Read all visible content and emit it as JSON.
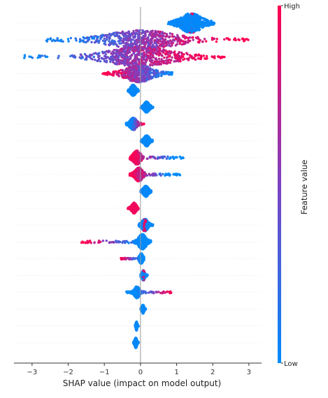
{
  "chart_data": {
    "type": "scatter",
    "subtype": "shap-beeswarm-summary",
    "title": "",
    "xlabel": "SHAP value (impact on model output)",
    "xlim": [
      -3.5,
      3.35
    ],
    "xticks": [
      -3,
      -2,
      -1,
      0,
      1,
      2,
      3
    ],
    "xtick_labels": [
      "−3",
      "−2",
      "−1",
      "0",
      "1",
      "2",
      "3"
    ],
    "grid": false,
    "zero_line": true,
    "colorbar": {
      "title": "Feature value",
      "high_label": "High",
      "low_label": "Low",
      "high_color": "#ff0051",
      "low_color": "#008bfb",
      "placement": "right"
    },
    "feature_rows": [
      {
        "row": 1,
        "min": 0.75,
        "max": 2.05,
        "center": 1.4,
        "spread": 0.28,
        "density": 1.0,
        "color": "low-with-high-core",
        "high_side": "center"
      },
      {
        "row": 2,
        "min": -2.65,
        "max": 3.0,
        "center": 0.0,
        "spread": 0.9,
        "density": 1.0,
        "color": "mixed",
        "high_side": "right"
      },
      {
        "row": 3,
        "min": -3.25,
        "max": 2.35,
        "center": 0.0,
        "spread": 0.9,
        "density": 1.0,
        "color": "mixed",
        "high_side": "right"
      },
      {
        "row": 4,
        "min": -1.05,
        "max": 0.9,
        "center": -0.05,
        "spread": 0.35,
        "density": 0.85,
        "color": "mixed",
        "high_side": "left"
      },
      {
        "row": 5,
        "min": -0.35,
        "max": -0.05,
        "center": -0.2,
        "spread": 0.07,
        "density": 0.4,
        "color": "low",
        "high_side": "none"
      },
      {
        "row": 6,
        "min": 0.0,
        "max": 0.35,
        "center": 0.17,
        "spread": 0.07,
        "density": 0.4,
        "color": "low",
        "high_side": "none"
      },
      {
        "row": 7,
        "min": -0.4,
        "max": 0.1,
        "center": -0.2,
        "spread": 0.09,
        "density": 0.5,
        "color": "low-high-right",
        "high_side": "right"
      },
      {
        "row": 8,
        "min": 0.0,
        "max": 0.35,
        "center": 0.17,
        "spread": 0.07,
        "density": 0.4,
        "color": "low",
        "high_side": "none"
      },
      {
        "row": 9,
        "min": -0.3,
        "max": 1.2,
        "center": -0.1,
        "spread": 0.1,
        "density": 0.6,
        "color": "high-left-low-right",
        "high_side": "left"
      },
      {
        "row": 10,
        "min": -0.3,
        "max": 1.1,
        "center": -0.05,
        "spread": 0.1,
        "density": 0.6,
        "color": "high-left-low-right",
        "high_side": "left"
      },
      {
        "row": 11,
        "min": 0.0,
        "max": 0.3,
        "center": 0.15,
        "spread": 0.07,
        "density": 0.4,
        "color": "low",
        "high_side": "none"
      },
      {
        "row": 12,
        "min": -0.35,
        "max": -0.05,
        "center": -0.18,
        "spread": 0.06,
        "density": 0.4,
        "color": "high",
        "high_side": "center"
      },
      {
        "row": 13,
        "min": -0.05,
        "max": 0.35,
        "center": 0.12,
        "spread": 0.08,
        "density": 0.5,
        "color": "low-high-center",
        "high_side": "center"
      },
      {
        "row": 14,
        "min": -1.65,
        "max": 0.3,
        "center": 0.05,
        "spread": 0.1,
        "density": 0.7,
        "color": "high-left-low-right",
        "high_side": "left"
      },
      {
        "row": 15,
        "min": -0.55,
        "max": 0.1,
        "center": 0.02,
        "spread": 0.05,
        "density": 0.35,
        "color": "high-left-low-right",
        "high_side": "left"
      },
      {
        "row": 16,
        "min": 0.0,
        "max": 0.2,
        "center": 0.08,
        "spread": 0.04,
        "density": 0.35,
        "color": "low-high-center",
        "high_side": "center"
      },
      {
        "row": 17,
        "min": -0.4,
        "max": 0.85,
        "center": -0.1,
        "spread": 0.07,
        "density": 0.45,
        "color": "low-high-right",
        "high_side": "right"
      },
      {
        "row": 18,
        "min": 0.0,
        "max": 0.15,
        "center": 0.07,
        "spread": 0.03,
        "density": 0.25,
        "color": "low",
        "high_side": "none"
      },
      {
        "row": 19,
        "min": -0.15,
        "max": -0.05,
        "center": -0.11,
        "spread": 0.02,
        "density": 0.25,
        "color": "low",
        "high_side": "none"
      },
      {
        "row": 20,
        "min": -0.2,
        "max": -0.05,
        "center": -0.13,
        "spread": 0.03,
        "density": 0.35,
        "color": "low",
        "high_side": "none"
      }
    ]
  }
}
